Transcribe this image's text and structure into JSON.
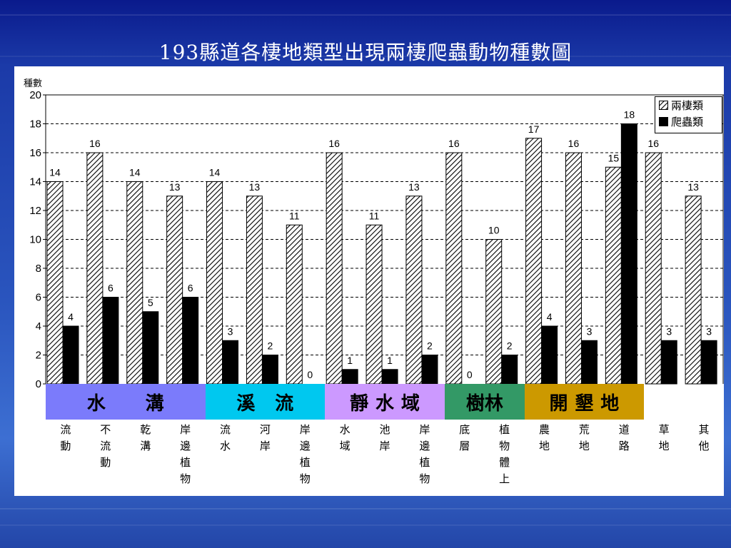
{
  "title": "193縣道各棲地類型出現兩棲爬蟲動物種數圖",
  "chart_data": {
    "type": "bar",
    "ylabel": "種數",
    "ylim": [
      0,
      20
    ],
    "yticks": [
      "0",
      "2",
      "4",
      "6",
      "8",
      "10",
      "12",
      "14",
      "16",
      "18",
      "20"
    ],
    "grid": "dashed horizontal",
    "legend_position": "top-right",
    "categories": [
      "流動",
      "不流動",
      "乾溝",
      "岸邊植物",
      "流水",
      "河岸",
      "岸邊植物",
      "水域",
      "池岸",
      "岸邊植物",
      "底層",
      "植物體上",
      "農地",
      "荒地",
      "道路",
      "草地",
      "其他"
    ],
    "series": [
      {
        "name": "兩棲類",
        "pattern": "hatched",
        "values": [
          14,
          16,
          14,
          13,
          14,
          13,
          11,
          16,
          11,
          13,
          16,
          10,
          17,
          16,
          15,
          16,
          13
        ]
      },
      {
        "name": "爬蟲類",
        "color": "#000000",
        "values": [
          4,
          6,
          5,
          6,
          3,
          2,
          0,
          1,
          1,
          2,
          0,
          2,
          4,
          3,
          18,
          3,
          3
        ]
      }
    ]
  },
  "groups": [
    {
      "label": "水　溝",
      "chars": [
        "水",
        "溝"
      ],
      "color": "#7b7bfb",
      "span": [
        0,
        3
      ]
    },
    {
      "label": "溪　流",
      "chars": [
        "溪",
        "流"
      ],
      "color": "#00c8ef",
      "span": [
        4,
        6
      ]
    },
    {
      "label": "靜水域",
      "chars": [
        "靜",
        "水",
        "域"
      ],
      "color": "#cc99ff",
      "span": [
        7,
        9
      ]
    },
    {
      "label": "樹林",
      "chars": [
        "樹",
        "林"
      ],
      "color": "#339966",
      "span": [
        10,
        11
      ]
    },
    {
      "label": "開墾地",
      "chars": [
        "開",
        "墾",
        "地"
      ],
      "color": "#cc9900",
      "span": [
        12,
        14
      ]
    }
  ]
}
